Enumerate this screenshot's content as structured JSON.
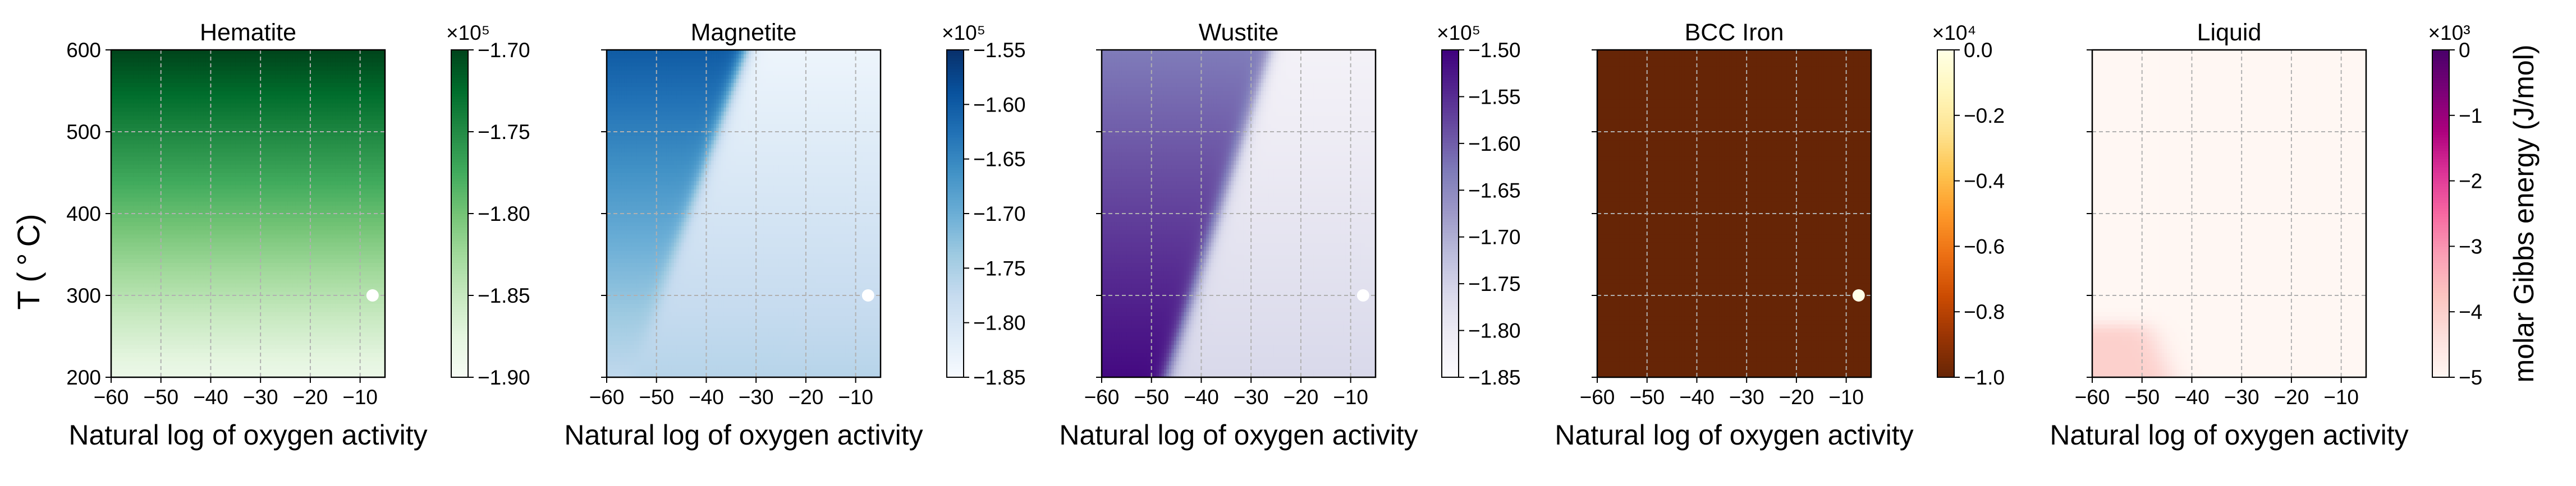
{
  "figure": {
    "shared_ylabel": "T ($^\\circ$C)",
    "shared_ylabel_display": "T ( ° C)",
    "colorbar_label": "molar Gibbs energy (J/mol)"
  },
  "chart_data": [
    {
      "type": "heatmap",
      "title": "Hematite",
      "xlabel": "Natural log of oxygen activity",
      "ylabel": "T ( ° C)",
      "xlim": [
        -60,
        -5
      ],
      "ylim": [
        200,
        600
      ],
      "xticks": [
        -60,
        -50,
        -40,
        -30,
        -20,
        -10
      ],
      "yticks": [
        200,
        300,
        400,
        500,
        600
      ],
      "grid": true,
      "colormap": "Greens",
      "colorbar": {
        "min": -190000,
        "max": -170000,
        "ticks": [
          "−1.90",
          "−1.85",
          "−1.80",
          "−1.75",
          "−1.70"
        ],
        "exponent": "×10⁵"
      },
      "field": {
        "kind": "temperature_gradient",
        "value_at_200C": -188500,
        "value_at_600C": -170000
      },
      "marker": {
        "x": -7.5,
        "y": 300,
        "color": "#ffffff"
      }
    },
    {
      "type": "heatmap",
      "title": "Magnetite",
      "xlabel": "Natural log of oxygen activity",
      "xlim": [
        -60,
        -5
      ],
      "ylim": [
        200,
        600
      ],
      "xticks": [
        -60,
        -50,
        -40,
        -30,
        -20,
        -10
      ],
      "yticks": [
        200,
        300,
        400,
        500,
        600
      ],
      "grid": true,
      "colormap": "Blues",
      "colorbar": {
        "min": -185000,
        "max": -155000,
        "ticks": [
          "−1.85",
          "−1.80",
          "−1.75",
          "−1.70",
          "−1.65",
          "−1.60",
          "−1.55"
        ],
        "exponent": "×10⁵"
      },
      "field": {
        "kind": "boundary",
        "boundary_x_at_200C": -55,
        "boundary_x_at_600C": -32,
        "left_value_at_200C": -177000,
        "left_value_at_600C": -160000,
        "right_value_at_200C": -176000,
        "right_value_at_600C": -183500
      },
      "marker": {
        "x": -7.5,
        "y": 300,
        "color": "#ffffff"
      }
    },
    {
      "type": "heatmap",
      "title": "Wustite",
      "xlabel": "Natural log of oxygen activity",
      "xlim": [
        -60,
        -5
      ],
      "ylim": [
        200,
        600
      ],
      "xticks": [
        -60,
        -50,
        -40,
        -30,
        -20,
        -10
      ],
      "yticks": [
        200,
        300,
        400,
        500,
        600
      ],
      "grid": true,
      "colormap": "Purples",
      "colorbar": {
        "min": -185000,
        "max": -150000,
        "ticks": [
          "−1.85",
          "−1.80",
          "−1.75",
          "−1.70",
          "−1.65",
          "−1.60",
          "−1.55",
          "−1.50"
        ],
        "exponent": "×10⁵"
      },
      "field": {
        "kind": "boundary",
        "boundary_x_at_200C": -47,
        "boundary_x_at_600C": -26,
        "left_value_at_200C": -151000,
        "left_value_at_600C": -163000,
        "right_value_at_200C": -176000,
        "right_value_at_600C": -182000
      },
      "marker": {
        "x": -7.5,
        "y": 300,
        "color": "#ffffff"
      }
    },
    {
      "type": "heatmap",
      "title": "BCC Iron",
      "xlabel": "Natural log of oxygen activity",
      "xlim": [
        -60,
        -5
      ],
      "ylim": [
        200,
        600
      ],
      "xticks": [
        -60,
        -50,
        -40,
        -30,
        -20,
        -10
      ],
      "yticks": [
        200,
        300,
        400,
        500,
        600
      ],
      "grid": true,
      "colormap": "YlOrBr_r",
      "colorbar": {
        "min": -10000,
        "max": 0,
        "ticks": [
          "−1.0",
          "−0.8",
          "−0.6",
          "−0.4",
          "−0.2",
          "0.0"
        ],
        "exponent": "×10⁴"
      },
      "field": {
        "kind": "uniform",
        "value": -10000
      },
      "marker": {
        "x": -7.5,
        "y": 300,
        "color": "#ffffe8"
      }
    },
    {
      "type": "heatmap",
      "title": "Liquid",
      "xlabel": "Natural log of oxygen activity",
      "xlim": [
        -60,
        -5
      ],
      "ylim": [
        200,
        600
      ],
      "xticks": [
        -60,
        -50,
        -40,
        -30,
        -20,
        -10
      ],
      "yticks": [
        200,
        300,
        400,
        500,
        600
      ],
      "grid": true,
      "colormap": "RdPu",
      "colorbar": {
        "min": -5000,
        "max": 0,
        "ticks": [
          "−5",
          "−4",
          "−3",
          "−2",
          "−1",
          "0"
        ],
        "exponent": "×10³",
        "label": "molar Gibbs energy (J/mol)"
      },
      "field": {
        "kind": "corner_blob",
        "x_edge_at_200C": -44,
        "x_edge_at_260C": -48,
        "y_top": 265,
        "peak_value": -4000,
        "base_value": -5000
      },
      "marker": null
    }
  ]
}
